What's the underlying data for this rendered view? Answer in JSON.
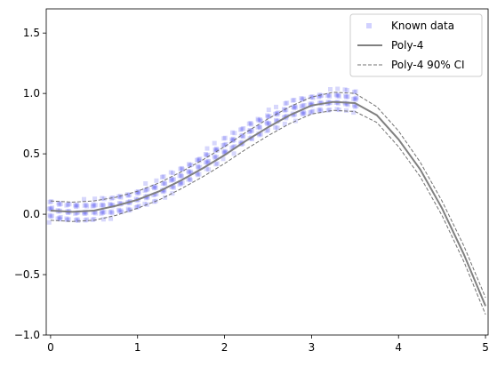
{
  "chart_data": {
    "type": "scatter",
    "title": "",
    "xlabel": "",
    "ylabel": "",
    "xlim": [
      -0.05,
      5.03
    ],
    "ylim": [
      -1.0,
      1.7
    ],
    "x_ticks": [
      0,
      1,
      2,
      3,
      4,
      5
    ],
    "x_tick_labels": [
      "0",
      "1",
      "2",
      "3",
      "4",
      "5"
    ],
    "y_ticks": [
      -1.0,
      -0.5,
      0.0,
      0.5,
      1.0,
      1.5
    ],
    "y_tick_labels": [
      "−1.0",
      "−0.5",
      "0.0",
      "0.5",
      "1.0",
      "1.5"
    ],
    "grid": false,
    "legend_position": "top-right",
    "legend": [
      {
        "label": "Known data",
        "marker": "square",
        "color": "#7b7bff"
      },
      {
        "label": "Poly-4",
        "line": "solid",
        "color": "#808080"
      },
      {
        "label": "Poly-4 90% CI",
        "line": "dashed",
        "color": "#808080"
      }
    ],
    "colors": {
      "points": "#4a4af0",
      "fit": "#808080",
      "ci": "#707070"
    },
    "known_data": {
      "name": "Known data",
      "x_range": [
        0.0,
        3.5
      ],
      "x": [
        0.0,
        0.1,
        0.2,
        0.3,
        0.4,
        0.5,
        0.6,
        0.7,
        0.8,
        0.9,
        1.0,
        1.1,
        1.2,
        1.3,
        1.4,
        1.5,
        1.6,
        1.7,
        1.8,
        1.9,
        2.0,
        2.1,
        2.2,
        2.3,
        2.4,
        2.5,
        2.6,
        2.7,
        2.8,
        2.9,
        3.0,
        3.1,
        3.2,
        3.3,
        3.4,
        3.5
      ],
      "y_center": [
        0.03,
        0.02,
        0.02,
        0.02,
        0.03,
        0.04,
        0.05,
        0.06,
        0.08,
        0.1,
        0.13,
        0.16,
        0.19,
        0.23,
        0.27,
        0.31,
        0.35,
        0.4,
        0.45,
        0.5,
        0.55,
        0.6,
        0.64,
        0.69,
        0.73,
        0.77,
        0.8,
        0.84,
        0.87,
        0.89,
        0.91,
        0.93,
        0.94,
        0.95,
        0.95,
        0.94
      ],
      "spread": 0.08
    },
    "series": [
      {
        "name": "Poly-4",
        "x": [
          0.0,
          0.25,
          0.5,
          0.75,
          1.0,
          1.25,
          1.5,
          1.75,
          2.0,
          2.25,
          2.5,
          2.75,
          3.0,
          3.25,
          3.5,
          3.75,
          4.0,
          4.25,
          4.5,
          4.75,
          5.0
        ],
        "y": [
          0.03,
          0.02,
          0.03,
          0.07,
          0.12,
          0.19,
          0.28,
          0.38,
          0.49,
          0.61,
          0.72,
          0.82,
          0.9,
          0.93,
          0.92,
          0.82,
          0.62,
          0.37,
          0.05,
          -0.33,
          -0.76
        ]
      },
      {
        "name": "Poly-4 90% CI",
        "x": [
          0.0,
          0.25,
          0.5,
          0.75,
          1.0,
          1.25,
          1.5,
          1.75,
          2.0,
          2.25,
          2.5,
          2.75,
          3.0,
          3.25,
          3.5,
          3.75,
          4.0,
          4.25,
          4.5,
          4.75,
          5.0
        ],
        "y": [
          0.11,
          0.1,
          0.11,
          0.14,
          0.19,
          0.26,
          0.35,
          0.45,
          0.56,
          0.68,
          0.79,
          0.89,
          0.97,
          1.01,
          1.0,
          0.89,
          0.69,
          0.43,
          0.11,
          -0.26,
          -0.69
        ]
      },
      {
        "name": "Poly-4 90% CI",
        "x": [
          0.0,
          0.25,
          0.5,
          0.75,
          1.0,
          1.25,
          1.5,
          1.75,
          2.0,
          2.25,
          2.5,
          2.75,
          3.0,
          3.25,
          3.5,
          3.75,
          4.0,
          4.25,
          4.5,
          4.75,
          5.0
        ],
        "y": [
          -0.05,
          -0.06,
          -0.05,
          -0.01,
          0.05,
          0.12,
          0.21,
          0.31,
          0.42,
          0.54,
          0.65,
          0.75,
          0.83,
          0.86,
          0.85,
          0.76,
          0.56,
          0.31,
          -0.01,
          -0.39,
          -0.83
        ]
      }
    ]
  }
}
